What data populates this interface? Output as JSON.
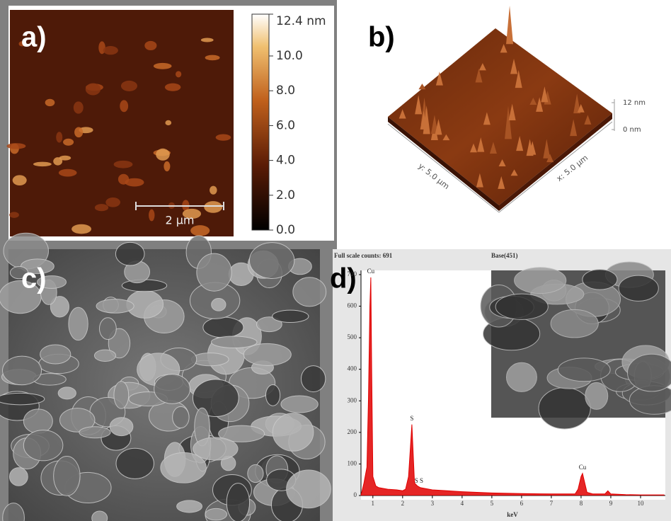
{
  "panels": {
    "a": {
      "label": "a)",
      "scale_bar": "2 µm",
      "colorbar": {
        "zlim": [
          0,
          12.4
        ],
        "ticks": [
          {
            "value": 0,
            "label": "0.0"
          },
          {
            "value": 2,
            "label": "2.0"
          },
          {
            "value": 4,
            "label": "4.0"
          },
          {
            "value": 6,
            "label": "6.0"
          },
          {
            "value": 8,
            "label": "8.0"
          },
          {
            "value": 10,
            "label": "10.0"
          },
          {
            "value": 12.4,
            "label": "12.4 nm"
          }
        ]
      }
    },
    "b": {
      "label": "b)",
      "z_ticks": [
        {
          "value": 0,
          "label": "0 nm"
        },
        {
          "value": 12,
          "label": "12 nm"
        }
      ],
      "y_axis": "y: 5.0 µm",
      "x_axis": "x: 5.0 µm"
    },
    "c": {
      "label": "c)"
    },
    "d": {
      "label": "d)",
      "chart_data": {
        "type": "line",
        "title": "Full scale counts: 691",
        "subtitle": "Base(451)",
        "x_label": "keV",
        "color": "#e00000",
        "x": [
          0.6,
          0.7,
          0.8,
          0.85,
          0.9,
          0.93,
          0.96,
          1.0,
          1.1,
          1.2,
          1.5,
          1.8,
          2.0,
          2.1,
          2.2,
          2.31,
          2.4,
          2.5,
          2.6,
          3,
          4,
          5,
          6,
          7,
          7.8,
          7.9,
          8.0,
          8.05,
          8.1,
          8.2,
          8.4,
          8.8,
          8.9,
          9.0,
          9.5,
          10,
          10.8
        ],
        "values": [
          0,
          40,
          90,
          300,
          600,
          691,
          400,
          60,
          30,
          25,
          20,
          18,
          15,
          20,
          60,
          225,
          40,
          30,
          25,
          18,
          12,
          8,
          6,
          5,
          5,
          20,
          60,
          70,
          50,
          10,
          5,
          5,
          15,
          5,
          3,
          2,
          2
        ],
        "xlim": [
          0.6,
          10.8
        ],
        "ylim": [
          0,
          720
        ],
        "xticks": [
          1,
          2,
          3,
          4,
          5,
          6,
          7,
          8,
          9,
          10
        ],
        "yticks": [
          0,
          100,
          200,
          300,
          400,
          500,
          600,
          700
        ],
        "peaks": [
          {
            "label": "Cu",
            "x": 0.93
          },
          {
            "label": "S",
            "x": 2.31
          },
          {
            "label": "S S",
            "x": 2.55
          },
          {
            "label": "Cu",
            "x": 8.05
          }
        ]
      }
    }
  }
}
